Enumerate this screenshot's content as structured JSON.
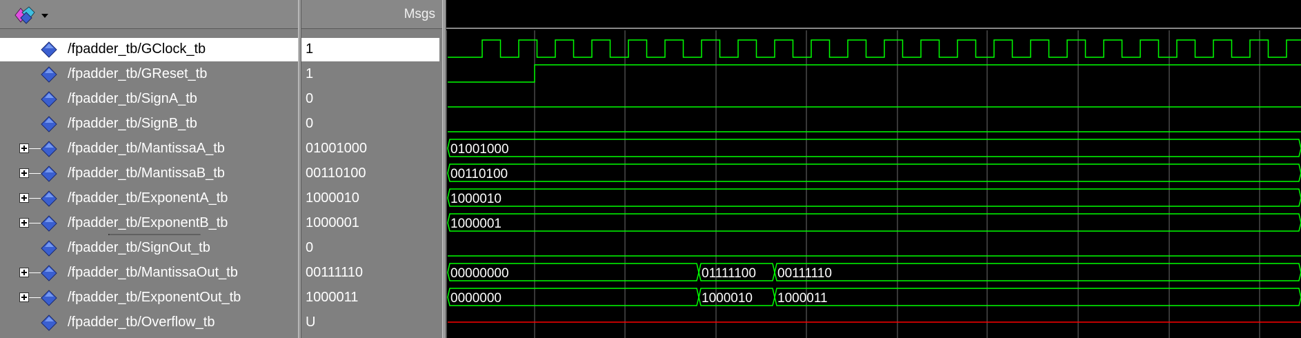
{
  "header": {
    "msgs_label": "Msgs"
  },
  "signals": [
    {
      "path": "/fpadder_tb/GClock_tb",
      "value": "1",
      "expandable": false,
      "selected": true,
      "kind": "clock"
    },
    {
      "path": "/fpadder_tb/GReset_tb",
      "value": "1",
      "expandable": false,
      "kind": "bit"
    },
    {
      "path": "/fpadder_tb/SignA_tb",
      "value": "0",
      "expandable": false,
      "kind": "bit"
    },
    {
      "path": "/fpadder_tb/SignB_tb",
      "value": "0",
      "expandable": false,
      "kind": "bit"
    },
    {
      "path": "/fpadder_tb/MantissaA_tb",
      "value": "01001000",
      "expandable": true,
      "kind": "bus",
      "segments": [
        "01001000"
      ]
    },
    {
      "path": "/fpadder_tb/MantissaB_tb",
      "value": "00110100",
      "expandable": true,
      "kind": "bus",
      "segments": [
        "00110100"
      ]
    },
    {
      "path": "/fpadder_tb/ExponentA_tb",
      "value": "1000010",
      "expandable": true,
      "kind": "bus",
      "segments": [
        "1000010"
      ]
    },
    {
      "path": "/fpadder_tb/ExponentB_tb",
      "value": "1000001",
      "expandable": true,
      "kind": "bus",
      "segments": [
        "1000001"
      ]
    },
    {
      "path": "/fpadder_tb/SignOut_tb",
      "value": "0",
      "expandable": false,
      "kind": "bit"
    },
    {
      "path": "/fpadder_tb/MantissaOut_tb",
      "value": "00111110",
      "expandable": true,
      "kind": "bus",
      "segments": [
        "00000000",
        "01111100",
        "00111110"
      ]
    },
    {
      "path": "/fpadder_tb/ExponentOut_tb",
      "value": "1000011",
      "expandable": true,
      "kind": "bus",
      "segments": [
        "0000000",
        "1000010",
        "1000011"
      ]
    },
    {
      "path": "/fpadder_tb/Overflow_tb",
      "value": "U",
      "expandable": false,
      "kind": "undefined"
    }
  ],
  "colors": {
    "wave": "#00ff00",
    "undefined": "#ff0000",
    "grid": "#6e6e6e",
    "diamond": "#3a5fd0"
  }
}
